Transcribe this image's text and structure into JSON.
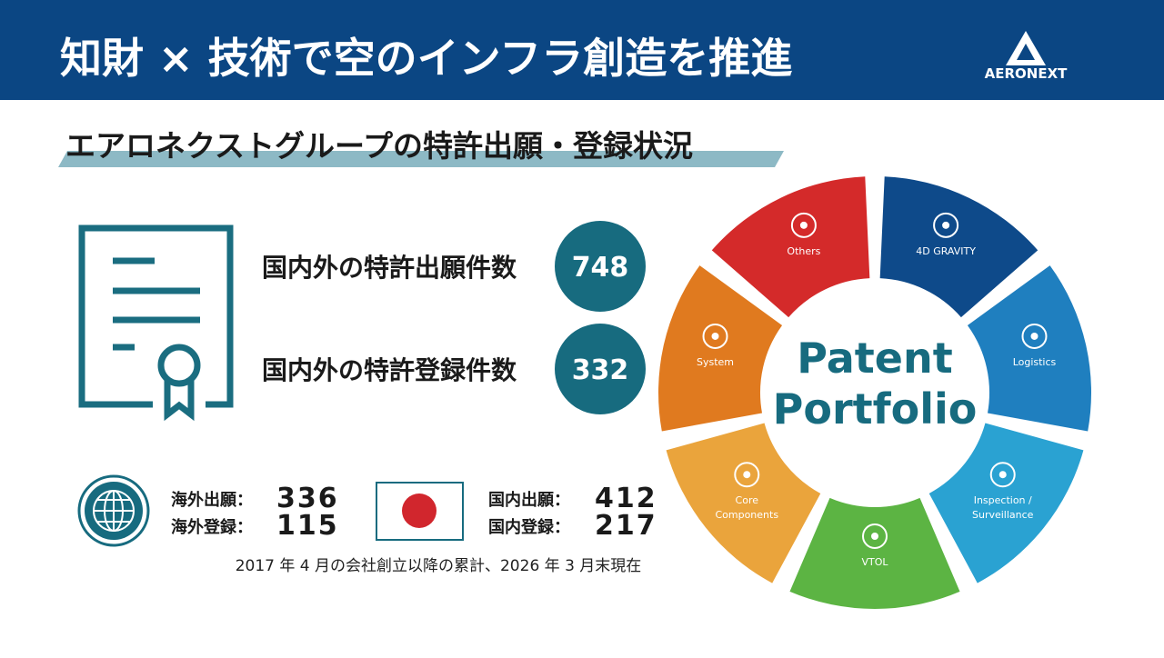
{
  "header": {
    "title": "知財 × 技術で空のインフラ創造を推進",
    "logo": "AERONEXT"
  },
  "subtitle": "エアロネクストグループの特許出願・登録状況",
  "stats": [
    {
      "label": "国内外の特許出願件数",
      "value": 748
    },
    {
      "label": "国内外の特許登録件数",
      "value": 332
    }
  ],
  "overseas": [
    {
      "label": "海外出願：",
      "value": 336
    },
    {
      "label": "海外登録：",
      "value": 115
    }
  ],
  "domestic": [
    {
      "label": "国内出願：",
      "value": 412
    },
    {
      "label": "国内登録：",
      "value": 217
    }
  ],
  "note": "2017 年 4 月の会社創立以降の累計、2026 年 3 月末現在",
  "wheel": {
    "center": [
      "Patent",
      "Portfolio"
    ],
    "segments": [
      {
        "label": [
          "4D GRAVITY"
        ],
        "color": "#0e4a8a"
      },
      {
        "label": [
          "Logistics"
        ],
        "color": "#1f7fbf"
      },
      {
        "label": [
          "Inspection /",
          "Surveillance"
        ],
        "color": "#2aa2d2"
      },
      {
        "label": [
          "VTOL"
        ],
        "color": "#5cb443"
      },
      {
        "label": [
          "Core",
          "Components"
        ],
        "color": "#eaa43c"
      },
      {
        "label": [
          "System"
        ],
        "color": "#e07a1f"
      },
      {
        "label": [
          "Others"
        ],
        "color": "#d42a2a"
      }
    ]
  }
}
